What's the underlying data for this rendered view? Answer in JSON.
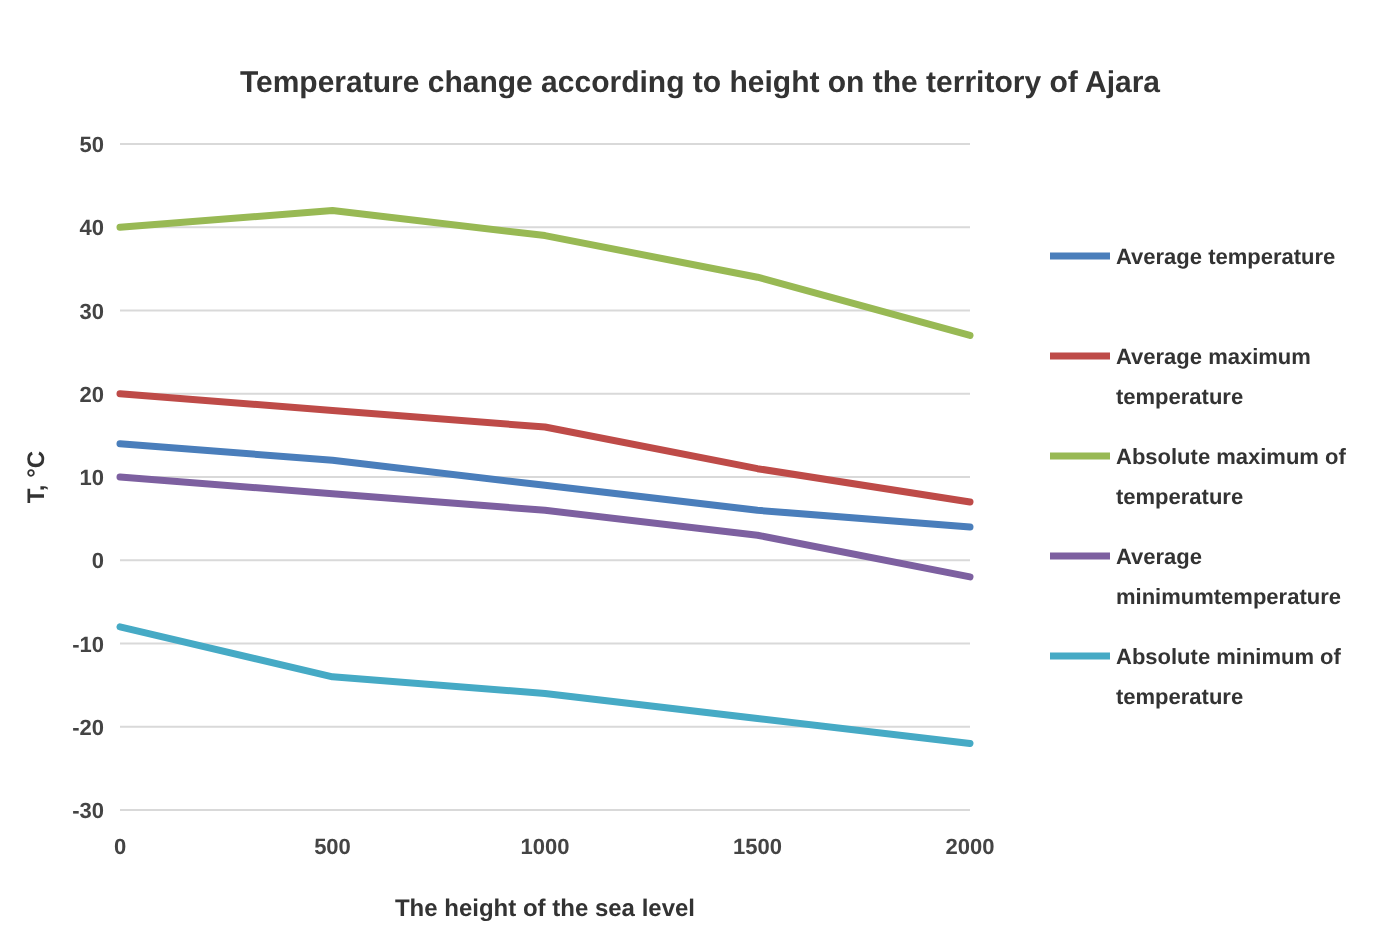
{
  "chart_data": {
    "type": "line",
    "title": "Temperature change according to height on the territory of Ajara",
    "xlabel": "The height of the sea level",
    "ylabel": "T, °C",
    "x": [
      0,
      500,
      1000,
      1500,
      2000
    ],
    "xlim": [
      0,
      2000
    ],
    "xticks": [
      0,
      500,
      1000,
      1500,
      2000
    ],
    "ylim": [
      -30,
      50
    ],
    "yticks": [
      -30,
      -20,
      -10,
      0,
      10,
      20,
      30,
      40,
      50
    ],
    "grid": "y",
    "legend": "right",
    "marker": "none",
    "series": [
      {
        "name": "Average temperature",
        "color": "#4a7ebb",
        "values": [
          14,
          12,
          9,
          6,
          4
        ]
      },
      {
        "name": "Average maximum temperature",
        "color": "#be4b48",
        "values": [
          20,
          18,
          16,
          11,
          7
        ]
      },
      {
        "name": "Absolute maximum of temperature",
        "color": "#98b954",
        "values": [
          40,
          42,
          39,
          34,
          27
        ]
      },
      {
        "name": "Average minimumtemperature",
        "color": "#7d60a0",
        "values": [
          10,
          8,
          6,
          3,
          -2
        ]
      },
      {
        "name": "Absolute minimum of temperature",
        "color": "#46aac5",
        "values": [
          -8,
          -14,
          -16,
          -19,
          -22
        ]
      }
    ]
  }
}
